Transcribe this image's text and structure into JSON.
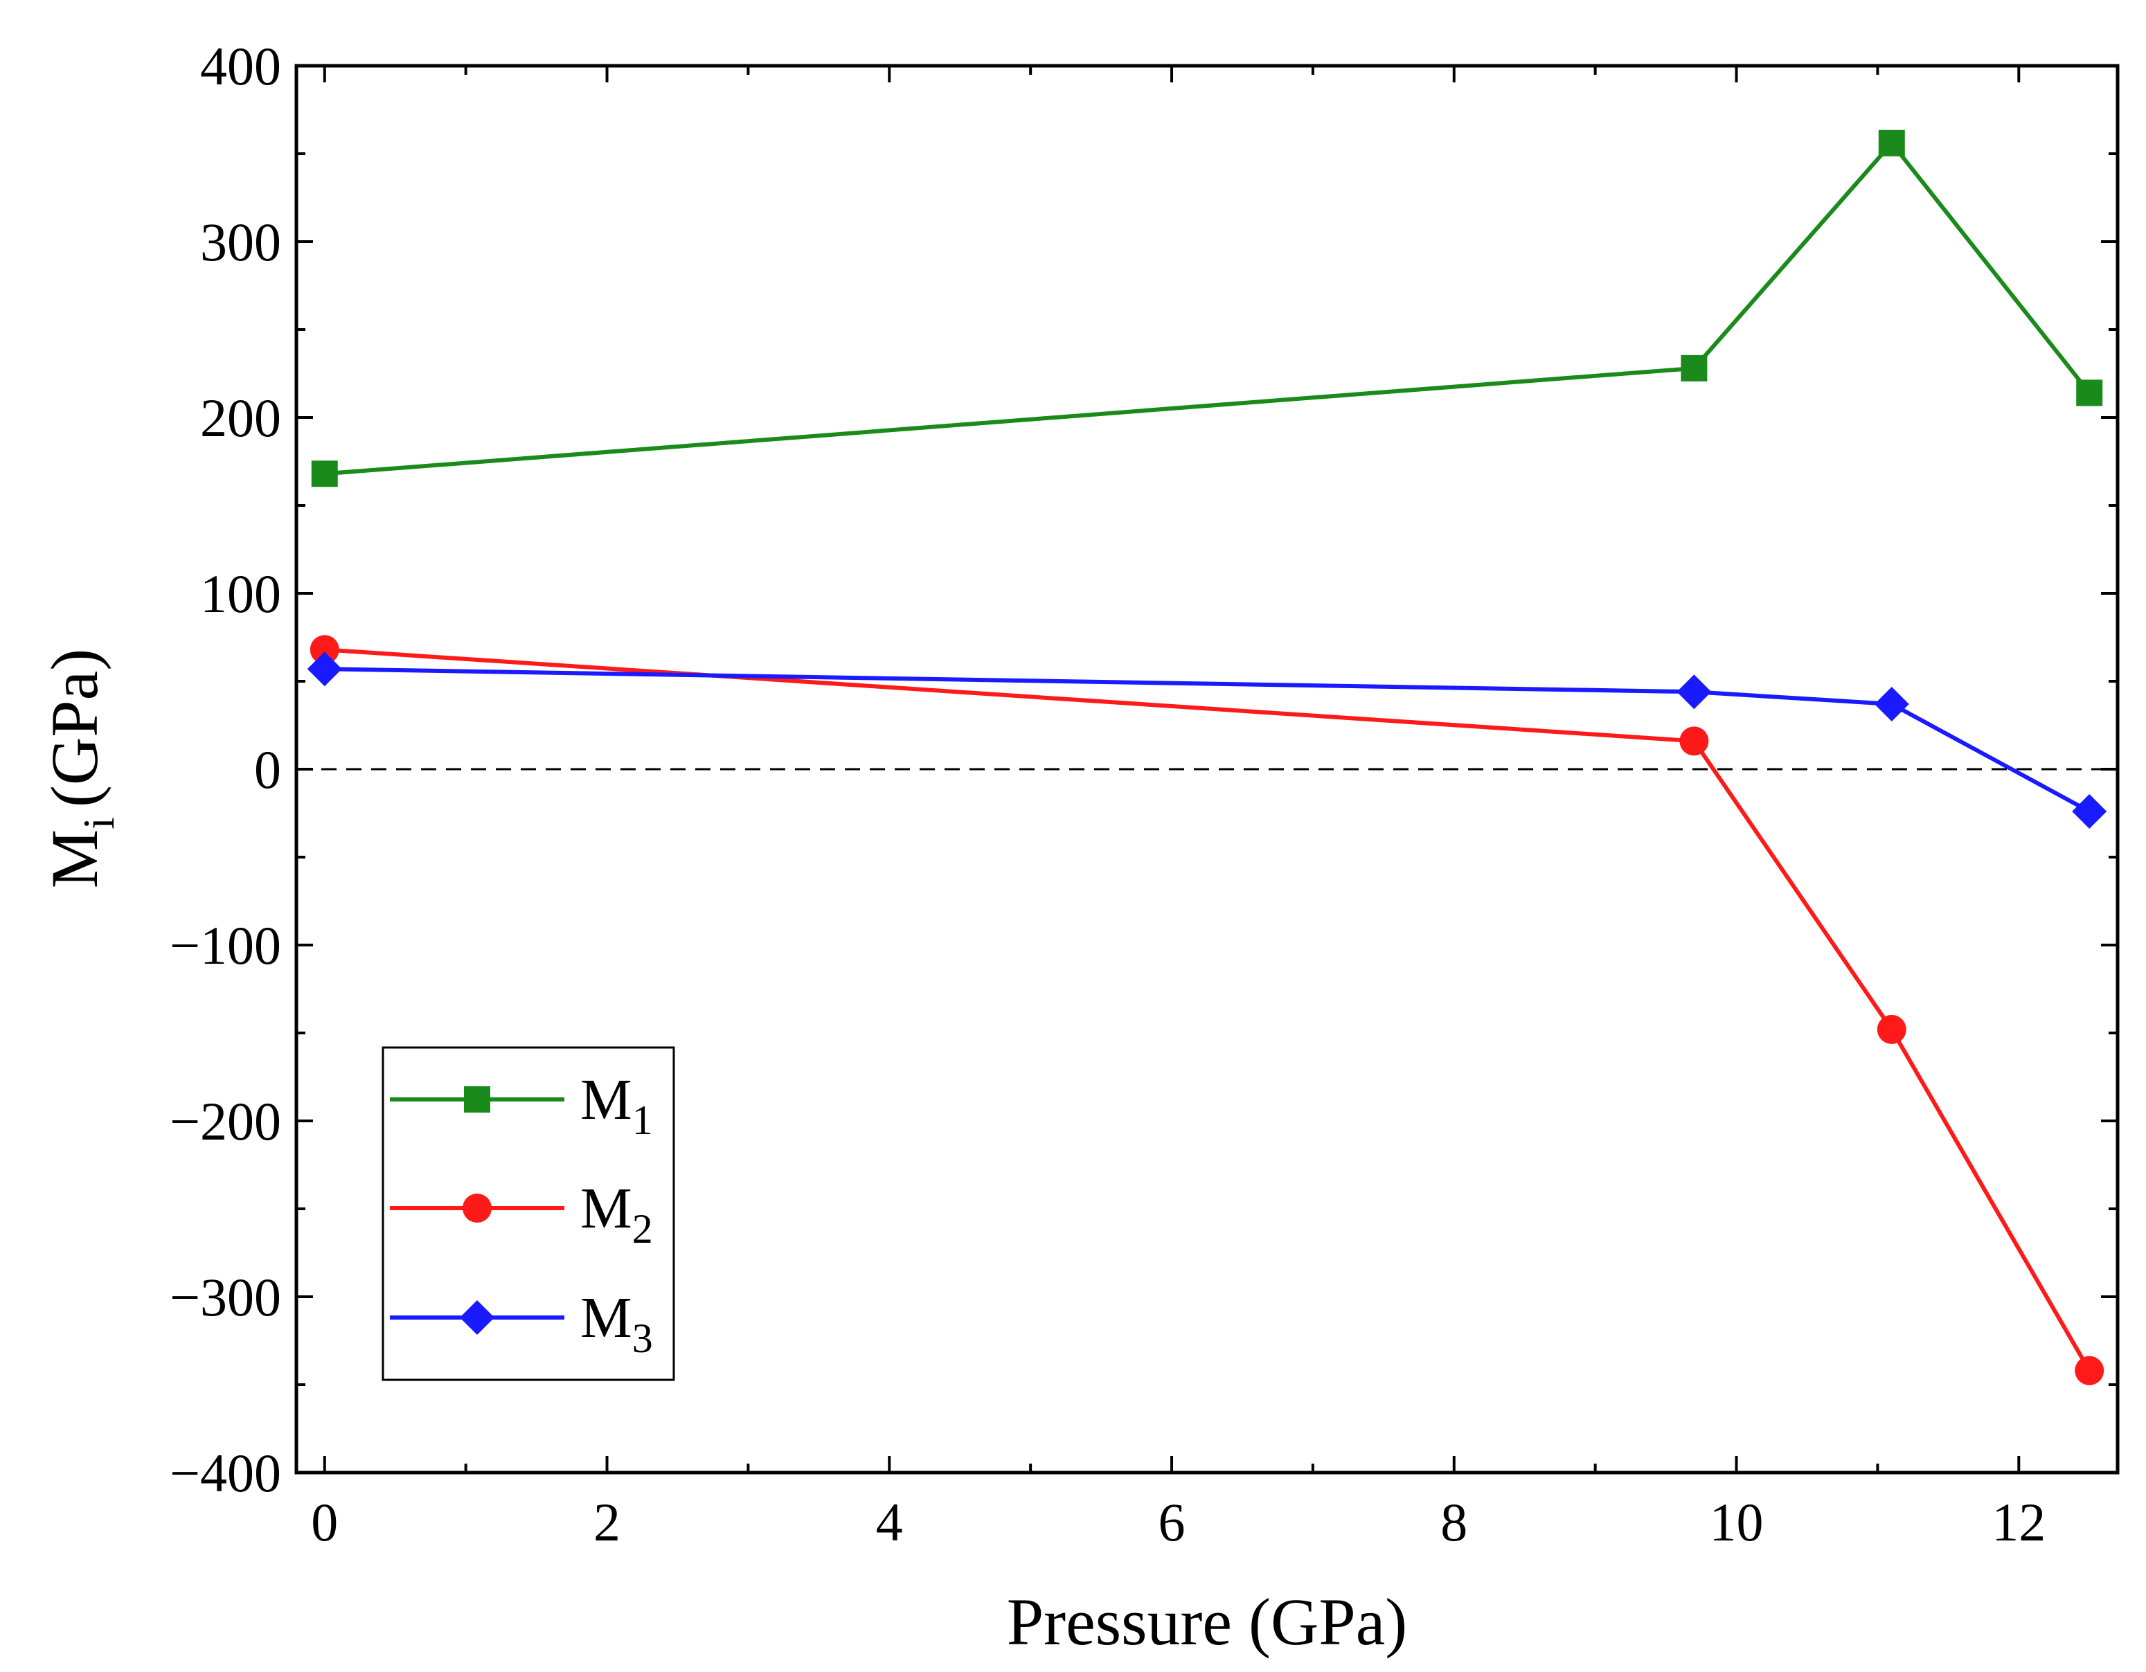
{
  "chart_data": {
    "type": "line",
    "xlabel": "Pressure (GPa)",
    "ylabel": {
      "main": "M",
      "sub": "i",
      "unit": "(GPa)"
    },
    "xlim": [
      -0.2,
      12.7
    ],
    "ylim": [
      -400,
      400
    ],
    "x_ticks": [
      {
        "value": 0,
        "label": "0"
      },
      {
        "value": 2,
        "label": "2"
      },
      {
        "value": 4,
        "label": "4"
      },
      {
        "value": 6,
        "label": "6"
      },
      {
        "value": 8,
        "label": "8"
      },
      {
        "value": 10,
        "label": "10"
      },
      {
        "value": 12,
        "label": "12"
      }
    ],
    "x_minor_step": 1,
    "y_ticks": [
      {
        "value": 400,
        "label": "400"
      },
      {
        "value": 300,
        "label": "300"
      },
      {
        "value": 200,
        "label": "200"
      },
      {
        "value": 100,
        "label": "100"
      },
      {
        "value": 0,
        "label": "0"
      },
      {
        "value": -100,
        "label": "−100"
      },
      {
        "value": -200,
        "label": "−200"
      },
      {
        "value": -300,
        "label": "−300"
      },
      {
        "value": -400,
        "label": "−400"
      }
    ],
    "y_minor_step": 50,
    "reference_line": {
      "y": 0,
      "style": "dashed",
      "color": "#000000"
    },
    "legend_position": "bottom-left",
    "series": [
      {
        "name": "M",
        "sub": "1",
        "color": "#1a8a1a",
        "marker": "square",
        "x": [
          0,
          9.7,
          11.1,
          12.5
        ],
        "y": [
          168,
          228,
          356,
          214
        ]
      },
      {
        "name": "M",
        "sub": "2",
        "color": "#ff1a1a",
        "marker": "circle",
        "x": [
          0,
          9.7,
          11.1,
          12.5
        ],
        "y": [
          68,
          16,
          -148,
          -342
        ]
      },
      {
        "name": "M",
        "sub": "3",
        "color": "#1a1aff",
        "marker": "diamond",
        "x": [
          0,
          9.7,
          11.1,
          12.5
        ],
        "y": [
          57,
          44,
          37,
          -24
        ]
      }
    ]
  }
}
